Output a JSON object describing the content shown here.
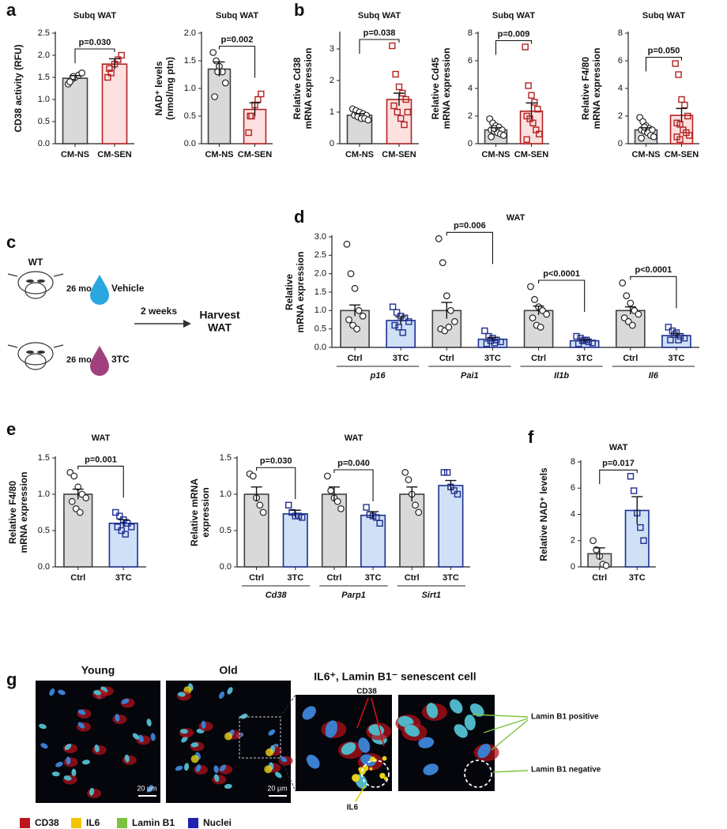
{
  "panel_labels": [
    "a",
    "b",
    "c",
    "d",
    "e",
    "f",
    "g"
  ],
  "chart_data": [
    {
      "type": "bar",
      "title": "Subq WAT",
      "ylabel": [
        "CD38 activity (RFU)"
      ],
      "categories": [
        "CM-NS",
        "CM-SEN"
      ],
      "values": [
        1.48,
        1.8
      ],
      "errors": [
        0.06,
        0.12
      ],
      "points": [
        [
          1.35,
          1.45,
          1.5,
          1.55,
          1.6,
          1.4,
          1.52
        ],
        [
          1.5,
          1.6,
          1.8,
          1.9,
          2.0,
          1.7
        ]
      ],
      "colors": [
        "#d9d9d9",
        "#fde0e0"
      ],
      "edge_colors": [
        "#404040",
        "#b22222"
      ],
      "markers": [
        "circle",
        "square"
      ],
      "ylim": [
        0,
        2.5
      ],
      "yticks": [
        {
          "value": 0,
          "label": "0.0"
        },
        0.5,
        {
          "value": 1,
          "label": "1.0"
        },
        1.5,
        {
          "value": 2,
          "label": "2.0"
        },
        2.5
      ],
      "annotations": [
        {
          "text": "p=0.030",
          "between": [
            0,
            1
          ]
        }
      ]
    },
    {
      "type": "bar",
      "title": "Subq WAT",
      "ylabel": [
        "NAD⁺ levels",
        "(nmol/mg ptn)"
      ],
      "categories": [
        "CM-NS",
        "CM-SEN"
      ],
      "values": [
        1.35,
        0.62
      ],
      "errors": [
        0.13,
        0.12
      ],
      "points": [
        [
          1.65,
          1.5,
          1.4,
          1.3,
          1.1,
          0.85,
          1.3
        ],
        [
          0.2,
          0.5,
          0.7,
          0.8,
          0.9,
          0.5
        ]
      ],
      "colors": [
        "#d9d9d9",
        "#fde0e0"
      ],
      "edge_colors": [
        "#404040",
        "#b22222"
      ],
      "markers": [
        "circle",
        "square"
      ],
      "ylim": [
        0,
        2
      ],
      "yticks": [
        {
          "value": 0,
          "label": "0.0"
        },
        0.5,
        {
          "value": 1,
          "label": "1.0"
        },
        1.5,
        {
          "value": 2,
          "label": "2.0"
        }
      ],
      "annotations": [
        {
          "text": "p=0.002",
          "between": [
            0,
            1
          ]
        }
      ]
    },
    {
      "type": "bar",
      "title": "Subq WAT",
      "ylabel": [
        "Relative Cd38",
        "mRNA expression"
      ],
      "categories": [
        "CM-NS",
        "CM-SEN"
      ],
      "values": [
        0.9,
        1.4
      ],
      "errors": [
        0.05,
        0.2
      ],
      "points": [
        [
          1.1,
          1.05,
          1.0,
          0.95,
          0.9,
          0.9,
          0.85,
          0.8,
          0.8,
          0.75
        ],
        [
          3.1,
          2.2,
          1.8,
          1.6,
          1.4,
          1.2,
          1.0,
          0.8,
          0.6,
          1.0
        ]
      ],
      "colors": [
        "#d9d9d9",
        "#fde0e0"
      ],
      "edge_colors": [
        "#404040",
        "#b22222"
      ],
      "markers": [
        "circle",
        "square"
      ],
      "ylim": [
        0,
        3.5
      ],
      "yticks": [
        0,
        1,
        2,
        3
      ],
      "annotations": [
        {
          "text": "p=0.038",
          "between": [
            0,
            1
          ]
        }
      ]
    },
    {
      "type": "bar",
      "title": "Subq WAT",
      "ylabel": [
        "Relative Cd45",
        "mRNA expression"
      ],
      "categories": [
        "CM-NS",
        "CM-SEN"
      ],
      "values": [
        1.0,
        2.35
      ],
      "errors": [
        0.15,
        0.6
      ],
      "points": [
        [
          1.8,
          1.5,
          1.3,
          1.2,
          1.0,
          1.0,
          0.9,
          0.8,
          0.7,
          0.6,
          0.5,
          1.1
        ],
        [
          7.0,
          4.2,
          3.5,
          3.0,
          2.5,
          2.0,
          1.8,
          1.5,
          1.0,
          0.7,
          0.3
        ]
      ],
      "colors": [
        "#d9d9d9",
        "#fde0e0"
      ],
      "edge_colors": [
        "#404040",
        "#b22222"
      ],
      "markers": [
        "circle",
        "square"
      ],
      "ylim": [
        0,
        8
      ],
      "yticks": [
        0,
        2,
        4,
        6,
        8
      ],
      "annotations": [
        {
          "text": "p=0.009",
          "between": [
            0,
            1
          ]
        }
      ]
    },
    {
      "type": "bar",
      "title": "Subq WAT",
      "ylabel": [
        "Relative F4/80",
        "mRNA expression"
      ],
      "categories": [
        "CM-NS",
        "CM-SEN"
      ],
      "values": [
        1.0,
        2.05
      ],
      "errors": [
        0.15,
        0.5
      ],
      "points": [
        [
          1.9,
          1.6,
          1.3,
          1.1,
          1.0,
          1.0,
          0.9,
          0.8,
          0.6,
          0.5,
          0.4,
          1.2
        ],
        [
          5.8,
          5.0,
          3.2,
          2.8,
          2.0,
          1.5,
          1.4,
          1.0,
          0.8,
          0.6,
          0.5,
          0.3
        ]
      ],
      "colors": [
        "#d9d9d9",
        "#fde0e0"
      ],
      "edge_colors": [
        "#404040",
        "#b22222"
      ],
      "markers": [
        "circle",
        "square"
      ],
      "ylim": [
        0,
        8
      ],
      "yticks": [
        0,
        2,
        4,
        6,
        8
      ],
      "annotations": [
        {
          "text": "p=0.050",
          "between": [
            0,
            1
          ]
        }
      ]
    },
    {
      "type": "bar",
      "title": "WAT",
      "ylabel": [
        "Relative",
        "mRNA expression"
      ],
      "categories": [
        "Ctrl",
        "3TC",
        "Ctrl",
        "3TC",
        "Ctrl",
        "3TC",
        "Ctrl",
        "3TC"
      ],
      "groups": [
        "p16",
        "Pai1",
        "Il1b",
        "Il6"
      ],
      "values": [
        1.0,
        0.73,
        1.0,
        0.22,
        1.0,
        0.18,
        1.0,
        0.32
      ],
      "errors": [
        0.15,
        0.1,
        0.22,
        0.05,
        0.12,
        0.03,
        0.1,
        0.05
      ],
      "points": [
        [
          2.8,
          2.0,
          1.6,
          1.0,
          0.85,
          0.75,
          0.6,
          0.5
        ],
        [
          1.1,
          0.95,
          0.85,
          0.8,
          0.7,
          0.6,
          0.55,
          0.4
        ],
        [
          2.95,
          2.3,
          1.4,
          1.0,
          0.7,
          0.5,
          0.45,
          0.55
        ],
        [
          0.45,
          0.3,
          0.25,
          0.2,
          0.15,
          0.1,
          0.18,
          0.12
        ],
        [
          1.65,
          1.3,
          1.1,
          1.0,
          0.9,
          0.8,
          0.6,
          0.55
        ],
        [
          0.3,
          0.25,
          0.2,
          0.15,
          0.12,
          0.1,
          0.18,
          0.2
        ],
        [
          1.75,
          1.4,
          1.2,
          1.0,
          0.9,
          0.8,
          0.7,
          0.6
        ],
        [
          0.55,
          0.45,
          0.4,
          0.3,
          0.25,
          0.2,
          0.35,
          0.2
        ]
      ],
      "colors": [
        "#d9d9d9",
        "#cfe0f7"
      ],
      "edge_colors": [
        "#404040",
        "#1f2f8f"
      ],
      "markers": [
        "circle",
        "square"
      ],
      "ylim": [
        0,
        3
      ],
      "yticks": [
        {
          "value": 0,
          "label": "0.0"
        },
        0.5,
        {
          "value": 1,
          "label": "1.0"
        },
        1.5,
        {
          "value": 2,
          "label": "2.0"
        },
        2.5,
        {
          "value": 3,
          "label": "3.0"
        }
      ],
      "annotations": [
        {
          "text": "p=0.006",
          "between": [
            2,
            3
          ]
        },
        {
          "text": "p<0.0001",
          "between": [
            4,
            5
          ]
        },
        {
          "text": "p<0.0001",
          "between": [
            6,
            7
          ]
        }
      ]
    },
    {
      "type": "bar",
      "title": "WAT",
      "ylabel": [
        "Relative F4/80",
        "mRNA expression"
      ],
      "categories": [
        "Ctrl",
        "3TC"
      ],
      "values": [
        1.0,
        0.6
      ],
      "errors": [
        0.07,
        0.05
      ],
      "points": [
        [
          1.3,
          1.25,
          1.1,
          1.0,
          0.95,
          0.9,
          0.8,
          0.75
        ],
        [
          0.75,
          0.7,
          0.65,
          0.6,
          0.55,
          0.55,
          0.5,
          0.45
        ]
      ],
      "colors": [
        "#d9d9d9",
        "#cfe0f7"
      ],
      "edge_colors": [
        "#404040",
        "#1f2f8f"
      ],
      "markers": [
        "circle",
        "square"
      ],
      "ylim": [
        0,
        1.5
      ],
      "yticks": [
        {
          "value": 0,
          "label": "0.0"
        },
        0.5,
        {
          "value": 1,
          "label": "1.0"
        },
        1.5
      ],
      "annotations": [
        {
          "text": "p=0.001",
          "between": [
            0,
            1
          ]
        }
      ]
    },
    {
      "type": "bar",
      "title": "WAT",
      "ylabel": [
        "Relative mRNA",
        "expression"
      ],
      "categories": [
        "Ctrl",
        "3TC",
        "Ctrl",
        "3TC",
        "Ctrl",
        "3TC"
      ],
      "groups": [
        "Cd38",
        "Parp1",
        "Sirt1"
      ],
      "values": [
        1.0,
        0.73,
        1.0,
        0.71,
        1.0,
        1.12
      ],
      "errors": [
        0.1,
        0.05,
        0.1,
        0.05,
        0.1,
        0.07
      ],
      "points": [
        [
          1.28,
          1.25,
          0.95,
          0.85,
          0.75
        ],
        [
          0.85,
          0.75,
          0.7,
          0.7,
          0.68
        ],
        [
          1.25,
          1.05,
          0.95,
          0.9,
          0.8
        ],
        [
          0.82,
          0.72,
          0.7,
          0.68,
          0.6
        ],
        [
          1.3,
          1.2,
          1.0,
          0.85,
          0.75
        ],
        [
          1.3,
          1.3,
          1.1,
          1.05,
          1.0
        ]
      ],
      "colors": [
        "#d9d9d9",
        "#cfe0f7"
      ],
      "edge_colors": [
        "#404040",
        "#1f2f8f"
      ],
      "markers": [
        "circle",
        "square"
      ],
      "ylim": [
        0,
        1.5
      ],
      "yticks": [
        {
          "value": 0,
          "label": "0.0"
        },
        0.5,
        {
          "value": 1,
          "label": "1.0"
        },
        1.5
      ],
      "annotations": [
        {
          "text": "p=0.030",
          "between": [
            0,
            1
          ]
        },
        {
          "text": "p=0.040",
          "between": [
            2,
            3
          ]
        }
      ]
    },
    {
      "type": "bar",
      "title": "WAT",
      "ylabel": [
        "Relative NAD⁺ levels"
      ],
      "categories": [
        "Ctrl",
        "3TC"
      ],
      "values": [
        1.0,
        4.3
      ],
      "errors": [
        0.45,
        1.05
      ],
      "points": [
        [
          2.0,
          1.3,
          0.8,
          0.2,
          0.1
        ],
        [
          6.9,
          5.8,
          4.1,
          3.0,
          2.0
        ]
      ],
      "colors": [
        "#d9d9d9",
        "#cfe0f7"
      ],
      "edge_colors": [
        "#404040",
        "#1f2f8f"
      ],
      "markers": [
        "circle",
        "square"
      ],
      "ylim": [
        0,
        8
      ],
      "yticks": [
        0,
        2,
        4,
        6,
        8
      ],
      "annotations": [
        {
          "text": "p=0.017",
          "between": [
            0,
            1
          ]
        }
      ]
    }
  ],
  "diagram": {
    "strain": "WT",
    "age_1": "26 mo",
    "treatment_1": "Vehicle",
    "age_2": "26 mo",
    "treatment_2": "3TC",
    "duration": "2 weeks",
    "outcome": [
      "Harvest",
      "WAT"
    ]
  },
  "micrographs": {
    "titles": [
      "Young",
      "Old",
      "IL6⁺, Lamin B1⁻ senescent cell"
    ],
    "scale_bars": [
      "20 μm",
      "20 μm"
    ],
    "callouts": [
      "CD38",
      "IL6",
      "Lamin B1 positive",
      "Lamin B1 negative"
    ],
    "legend": [
      {
        "name": "CD38",
        "color": "#c0141c"
      },
      {
        "name": "IL6",
        "color": "#f5c400"
      },
      {
        "name": "Lamin B1",
        "color": "#7cc242"
      },
      {
        "name": "Nuclei",
        "color": "#2020b0"
      }
    ]
  }
}
